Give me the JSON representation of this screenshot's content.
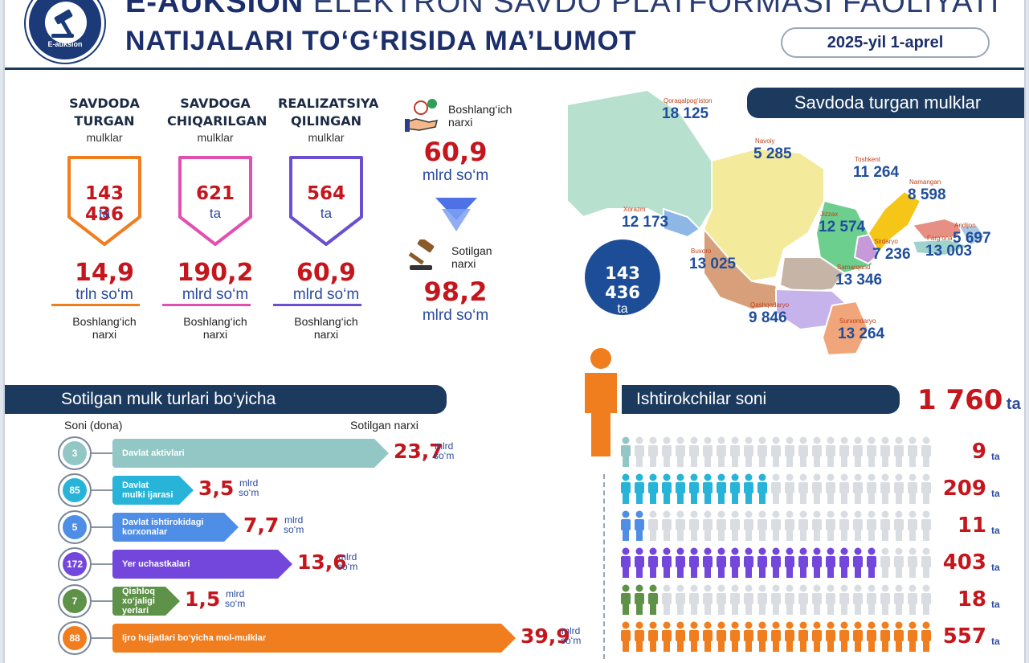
{
  "header": {
    "logo_text": "E-auksion",
    "title_line1_bold": "E-AUKSION",
    "title_line1_rest": "ELEKTRON SAVDO PLATFORMASI FAOLIYATI",
    "title_line2": "NATIJALARI TO‘G‘RISIDA MA’LUMOT",
    "date": "2025-yil 1-aprel"
  },
  "stats": [
    {
      "title_lines": [
        "SAVDODA",
        "TURGAN"
      ],
      "sub": "mulklar",
      "count": "143 436",
      "count_unit": "ta",
      "amount": "14,9",
      "amount_unit": "trln so‘m",
      "note_lines": [
        "Boshlang‘ich",
        "narxi"
      ],
      "color": "#f07d1e"
    },
    {
      "title_lines": [
        "SAVDOGA",
        "CHIQARILGAN"
      ],
      "sub": "mulklar",
      "count": "621",
      "count_unit": "ta",
      "amount": "190,2",
      "amount_unit": "mlrd so‘m",
      "note_lines": [
        "Boshlang‘ich",
        "narxi"
      ],
      "color": "#e24fb2"
    },
    {
      "title_lines": [
        "REALIZATSIYA",
        "QILINGAN"
      ],
      "sub": "mulklar",
      "count": "564",
      "count_unit": "ta",
      "amount": "60,9",
      "amount_unit": "mlrd so‘m",
      "note_lines": [
        "Boshlang‘ich",
        "narxi"
      ],
      "color": "#6a4fd0"
    }
  ],
  "center": {
    "start_label_lines": [
      "Boshlang‘ich",
      "narxi"
    ],
    "start_value": "60,9",
    "start_unit": "mlrd so‘m",
    "sold_label_lines": [
      "Sotilgan",
      "narxi"
    ],
    "sold_value": "98,2",
    "sold_unit": "mlrd so‘m"
  },
  "map": {
    "banner": "Savdoda turgan mulklar",
    "total": "143 436",
    "total_unit": "ta",
    "regions": [
      {
        "name": "Qoraqalpog‘iston",
        "value": "18 125"
      },
      {
        "name": "Navoiy",
        "value": "5 285"
      },
      {
        "name": "Toshkent",
        "value": "11 264"
      },
      {
        "name": "Namangan",
        "value": "8 598"
      },
      {
        "name": "Xorazm",
        "value": "12 173"
      },
      {
        "name": "Jizzax",
        "value": "12 574"
      },
      {
        "name": "Andijon",
        "value": "5 697"
      },
      {
        "name": "Sirdaryo",
        "value": "7 236"
      },
      {
        "name": "Farg‘ona",
        "value": "13 003"
      },
      {
        "name": "Buxoro",
        "value": "13 025"
      },
      {
        "name": "Samarqand",
        "value": "13 346"
      },
      {
        "name": "Qashqadaryo",
        "value": "9 846"
      },
      {
        "name": "Surxondaryo",
        "value": "13 264"
      }
    ]
  },
  "property_types": {
    "banner": "Sotilgan mulk turlari bo‘yicha",
    "col_count": "Soni (dona)",
    "col_price": "Sotilgan narxi",
    "rows": [
      {
        "count": "3",
        "label_lines": [
          "Davlat aktivlari"
        ],
        "value": "23,7",
        "unit_lines": [
          "mlrd",
          "so‘m"
        ],
        "color": "#93c7c6"
      },
      {
        "count": "85",
        "label_lines": [
          "Davlat",
          "mulki ijarasi"
        ],
        "value": "3,5",
        "unit_lines": [
          "mlrd",
          "so‘m"
        ],
        "color": "#27b4d8"
      },
      {
        "count": "5",
        "label_lines": [
          "Davlat ishtirokidagi",
          "korxonalar"
        ],
        "value": "7,7",
        "unit_lines": [
          "mlrd",
          "so‘m"
        ],
        "color": "#4e8ee6"
      },
      {
        "count": "172",
        "label_lines": [
          "Yer uchastkalari"
        ],
        "value": "13,6",
        "unit_lines": [
          "mlrd",
          "so‘m"
        ],
        "color": "#7347dc"
      },
      {
        "count": "7",
        "label_lines": [
          "Qishloq",
          "xo‘jaligi",
          "yerlari"
        ],
        "value": "1,5",
        "unit_lines": [
          "mlrd",
          "so‘m"
        ],
        "color": "#5f9249"
      },
      {
        "count": "88",
        "label_lines": [
          "Ijro hujjatlari bo‘yicha mol-mulklar"
        ],
        "value": "39,9",
        "unit_lines": [
          "mlrd",
          "so‘m"
        ],
        "color": "#f07d1e"
      }
    ]
  },
  "participants": {
    "banner": "Ishtirokchilar soni",
    "total": "1 760",
    "total_unit": "ta",
    "rows": [
      {
        "value": "9",
        "unit": "ta",
        "color": "#93c7c6",
        "filled": 1
      },
      {
        "value": "209",
        "unit": "ta",
        "color": "#27b4d8",
        "filled": 11
      },
      {
        "value": "11",
        "unit": "ta",
        "color": "#4e8ee6",
        "filled": 2
      },
      {
        "value": "403",
        "unit": "ta",
        "color": "#7347dc",
        "filled": 19
      },
      {
        "value": "18",
        "unit": "ta",
        "color": "#5f9249",
        "filled": 3
      },
      {
        "value": "557",
        "unit": "ta",
        "color": "#f07d1e",
        "filled": 23
      }
    ]
  }
}
